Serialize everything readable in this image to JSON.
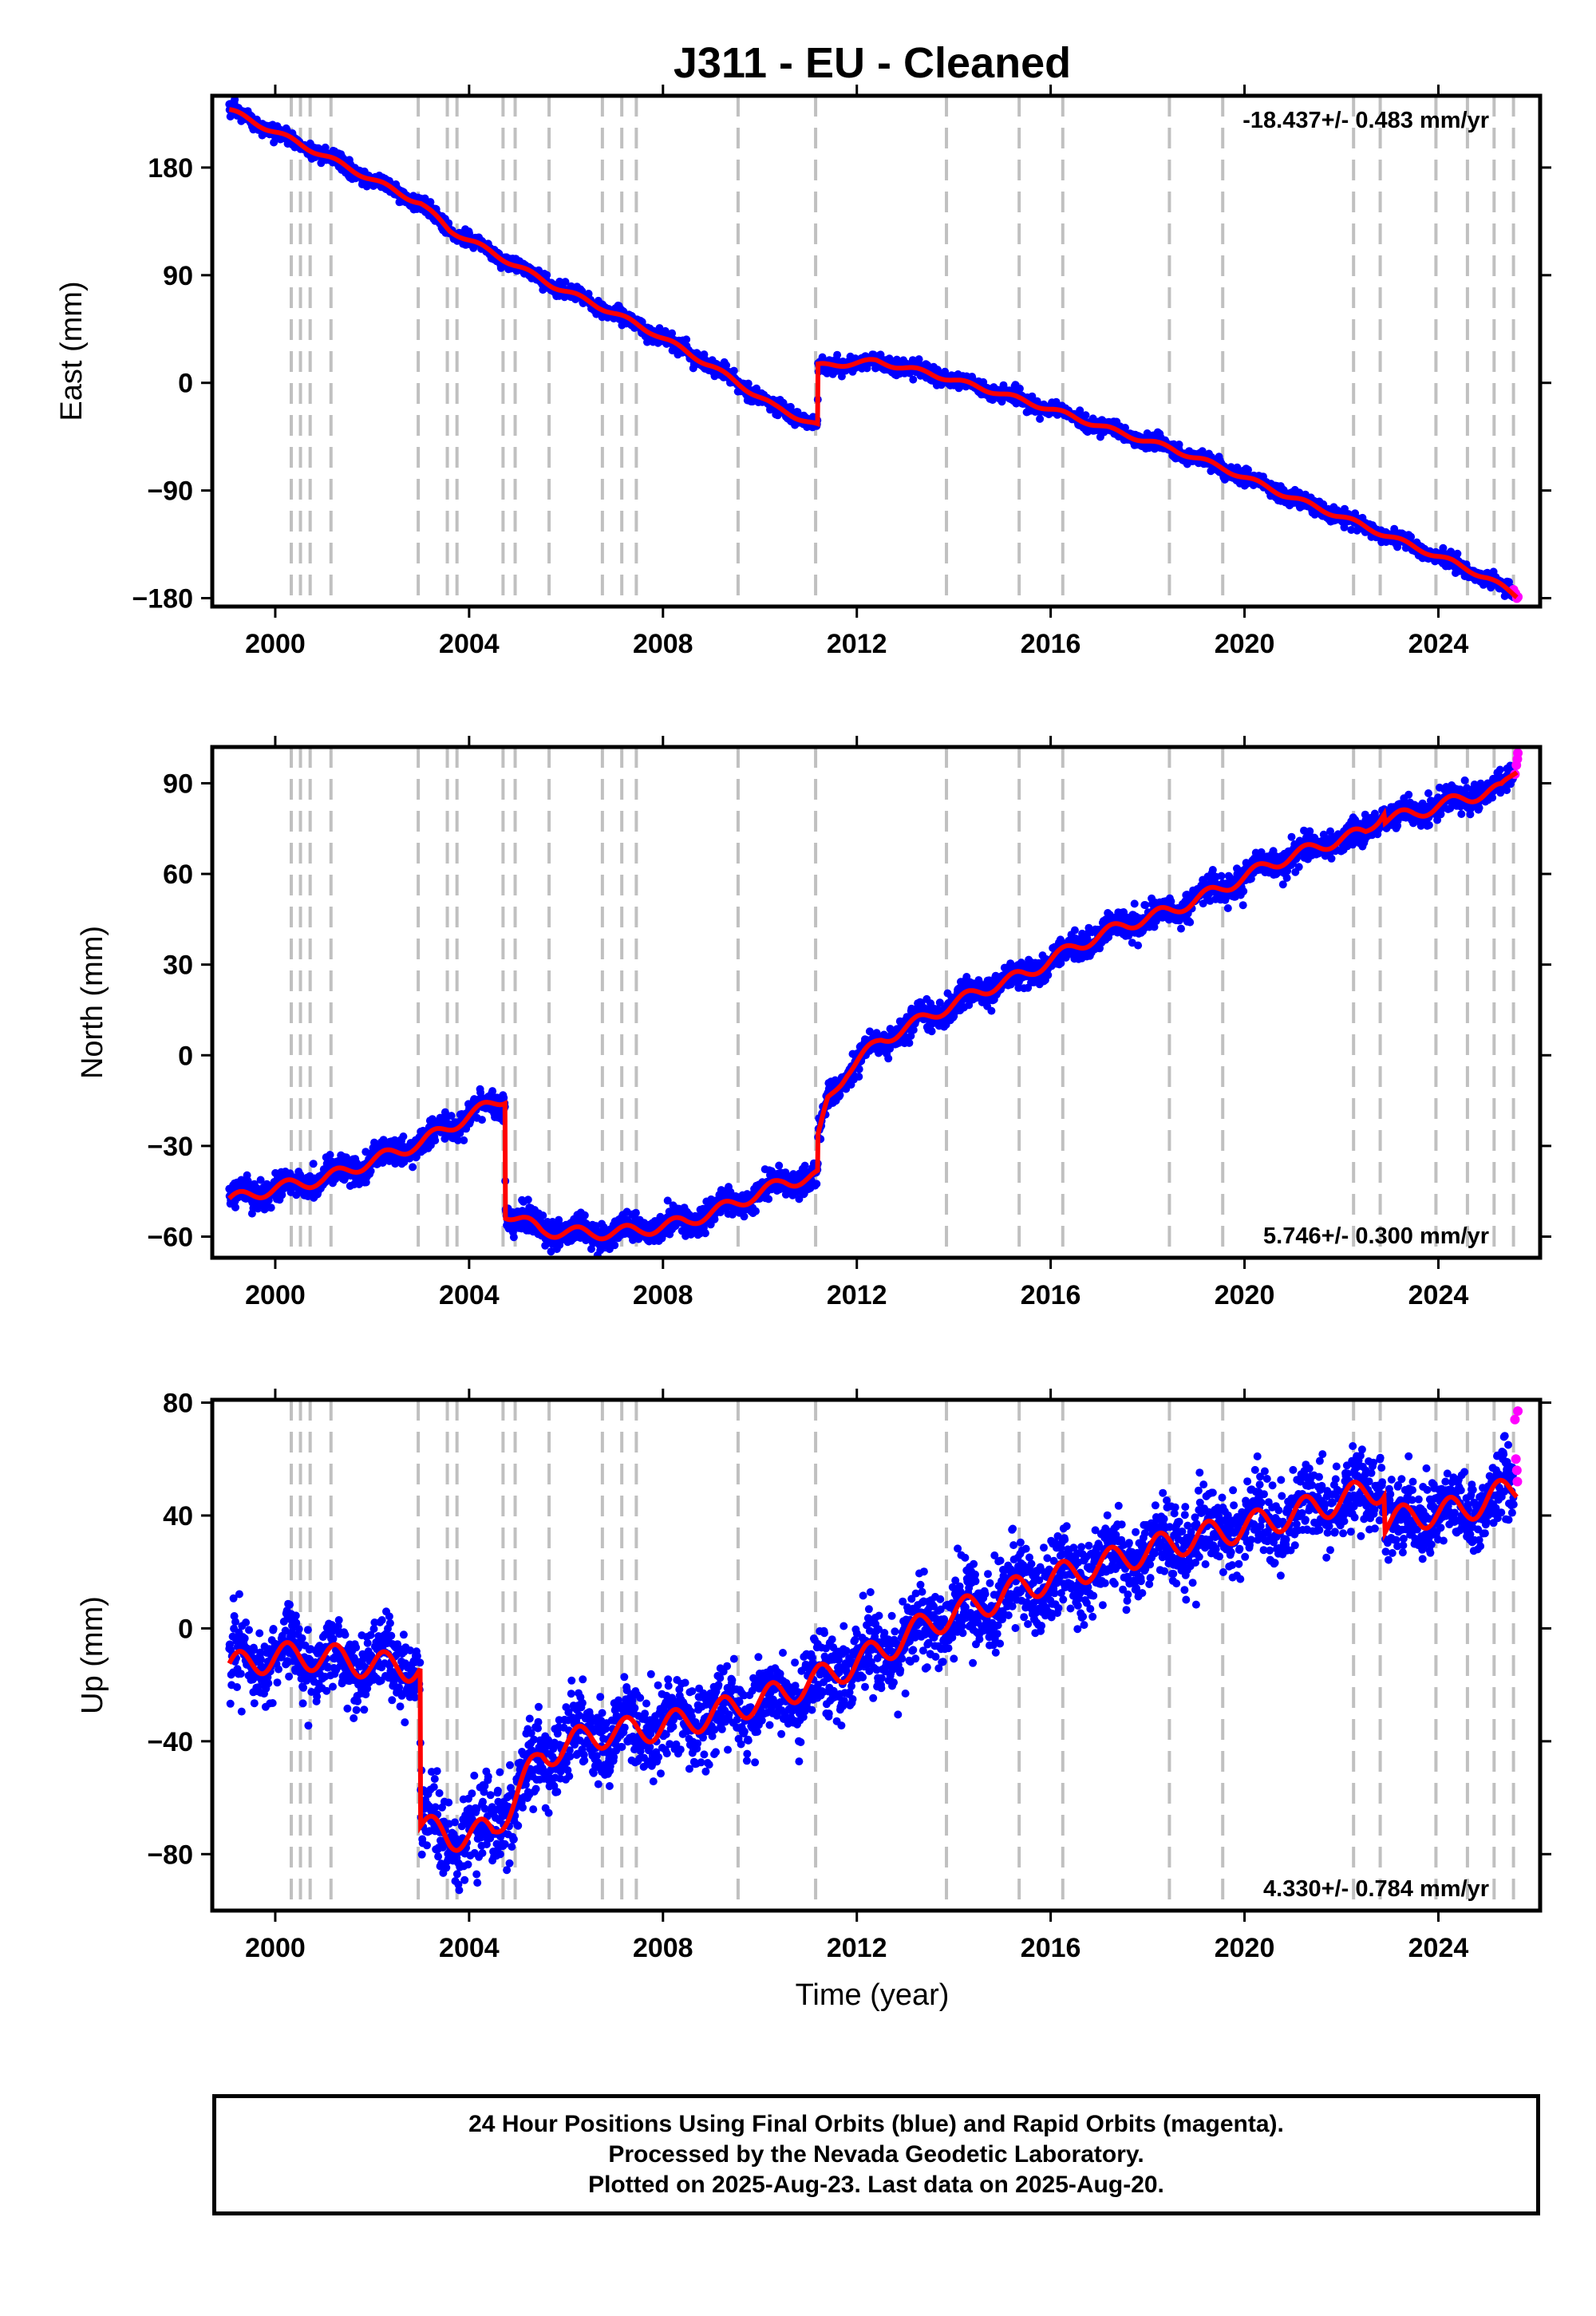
{
  "title": "J311  - EU - Cleaned",
  "xlabel": "Time (year)",
  "colors": {
    "final_orbits": "#0000ff",
    "rapid_orbits": "#ff00ff",
    "model": "#ff0000",
    "event_lines": "#c0c0c0"
  },
  "chart_data": [
    {
      "type": "scatter",
      "component": "east",
      "ylabel": "East (mm)",
      "rate_text": "-18.437+/- 0.483 mm/yr",
      "rate_position": "top-right",
      "xlim": [
        1998.7,
        2026.1
      ],
      "ylim": [
        -187,
        240
      ],
      "xticks": [
        2000,
        2004,
        2008,
        2012,
        2016,
        2020,
        2024
      ],
      "yticks": [
        -180,
        -90,
        0,
        90,
        180
      ],
      "ytick_labels": [
        "−180",
        "−90",
        "0",
        "90",
        "180"
      ],
      "model_knots": [
        [
          1999.05,
          228
        ],
        [
          2000.5,
          200
        ],
        [
          2001.6,
          178
        ],
        [
          2003.0,
          150
        ],
        [
          2003.6,
          128
        ],
        [
          2004.7,
          104
        ],
        [
          2005.7,
          82
        ],
        [
          2006.9,
          60
        ],
        [
          2007.8,
          42
        ],
        [
          2009.0,
          14
        ],
        [
          2010.3,
          -20
        ],
        [
          2011.19,
          -36
        ],
        [
          2011.2,
          14
        ],
        [
          2012.4,
          18
        ],
        [
          2013.5,
          8
        ],
        [
          2014.9,
          -8
        ],
        [
          2016.0,
          -22
        ],
        [
          2017.3,
          -40
        ],
        [
          2018.5,
          -55
        ],
        [
          2019.6,
          -72
        ],
        [
          2020.8,
          -93
        ],
        [
          2022.0,
          -112
        ],
        [
          2023.2,
          -132
        ],
        [
          2024.3,
          -150
        ],
        [
          2025.0,
          -163
        ],
        [
          2025.62,
          -178
        ]
      ],
      "scatter_sigma": 3,
      "seasonal_amplitude": 2,
      "rapid_points": [
        [
          2025.55,
          -173
        ],
        [
          2025.59,
          -176
        ],
        [
          2025.62,
          -180
        ],
        [
          2025.64,
          -179
        ]
      ]
    },
    {
      "type": "scatter",
      "component": "north",
      "ylabel": "North (mm)",
      "rate_text": "5.746+/- 0.300 mm/yr",
      "rate_position": "bottom-right",
      "xlim": [
        1998.7,
        2026.1
      ],
      "ylim": [
        -67,
        102
      ],
      "xticks": [
        2000,
        2004,
        2008,
        2012,
        2016,
        2020,
        2024
      ],
      "yticks": [
        -60,
        -30,
        0,
        30,
        60,
        90
      ],
      "ytick_labels": [
        "−60",
        "−30",
        "0",
        "30",
        "60",
        "90"
      ],
      "model_knots": [
        [
          1999.05,
          -48
        ],
        [
          2000.0,
          -44
        ],
        [
          2001.0,
          -41
        ],
        [
          2002.0,
          -35
        ],
        [
          2003.0,
          -29
        ],
        [
          2004.0,
          -20
        ],
        [
          2004.74,
          -14
        ],
        [
          2004.75,
          -52
        ],
        [
          2005.5,
          -58
        ],
        [
          2006.5,
          -59
        ],
        [
          2007.5,
          -58
        ],
        [
          2008.5,
          -55
        ],
        [
          2009.5,
          -49
        ],
        [
          2010.5,
          -42
        ],
        [
          2011.19,
          -40
        ],
        [
          2011.2,
          -28
        ],
        [
          2011.4,
          -15
        ],
        [
          2011.8,
          -5
        ],
        [
          2012.5,
          5
        ],
        [
          2013.5,
          13
        ],
        [
          2014.5,
          21
        ],
        [
          2015.5,
          27
        ],
        [
          2016.5,
          36
        ],
        [
          2017.5,
          43
        ],
        [
          2018.5,
          48
        ],
        [
          2019.5,
          55
        ],
        [
          2020.5,
          63
        ],
        [
          2021.5,
          69
        ],
        [
          2022.5,
          74
        ],
        [
          2022.88,
          81
        ],
        [
          2022.9,
          78
        ],
        [
          2023.5,
          80
        ],
        [
          2024.5,
          85
        ],
        [
          2025.3,
          88
        ],
        [
          2025.62,
          95
        ]
      ],
      "scatter_sigma": 2.2,
      "seasonal_amplitude": 2,
      "rapid_points": [
        [
          2025.58,
          93
        ],
        [
          2025.61,
          96
        ],
        [
          2025.63,
          98
        ],
        [
          2025.64,
          100
        ]
      ]
    },
    {
      "type": "scatter",
      "component": "up",
      "ylabel": "Up (mm)",
      "rate_text": "4.330+/- 0.784 mm/yr",
      "rate_position": "bottom-right",
      "xlim": [
        1998.7,
        2026.1
      ],
      "ylim": [
        -100,
        81
      ],
      "xticks": [
        2000,
        2004,
        2008,
        2012,
        2016,
        2020,
        2024
      ],
      "yticks": [
        -80,
        -40,
        0,
        40,
        80
      ],
      "ytick_labels": [
        "−80",
        "−40",
        "0",
        "40",
        "80"
      ],
      "model_knots": [
        [
          1999.05,
          -14
        ],
        [
          2000.0,
          -10
        ],
        [
          2001.0,
          -10
        ],
        [
          2002.0,
          -13
        ],
        [
          2002.99,
          -14
        ],
        [
          2003.0,
          -70
        ],
        [
          2003.6,
          -74
        ],
        [
          2004.5,
          -72
        ],
        [
          2005.0,
          -58
        ],
        [
          2005.5,
          -45
        ],
        [
          2006.5,
          -38
        ],
        [
          2007.5,
          -36
        ],
        [
          2008.5,
          -33
        ],
        [
          2009.5,
          -28
        ],
        [
          2010.5,
          -23
        ],
        [
          2011.5,
          -16
        ],
        [
          2012.5,
          -8
        ],
        [
          2013.5,
          2
        ],
        [
          2014.5,
          8
        ],
        [
          2015.5,
          15
        ],
        [
          2016.5,
          20
        ],
        [
          2017.5,
          25
        ],
        [
          2018.5,
          30
        ],
        [
          2019.5,
          34
        ],
        [
          2020.5,
          38
        ],
        [
          2021.5,
          43
        ],
        [
          2022.88,
          50
        ],
        [
          2022.9,
          37
        ],
        [
          2023.5,
          40
        ],
        [
          2024.5,
          42
        ],
        [
          2025.62,
          50
        ]
      ],
      "scatter_sigma": 7,
      "seasonal_amplitude": 5,
      "rapid_points": [
        [
          2025.58,
          74
        ],
        [
          2025.6,
          60
        ],
        [
          2025.62,
          56
        ],
        [
          2025.63,
          52
        ],
        [
          2025.64,
          77
        ]
      ]
    }
  ],
  "event_lines_years": [
    2000.33,
    2000.52,
    2000.72,
    2001.15,
    2002.95,
    2003.55,
    2003.75,
    2004.7,
    2004.95,
    2005.65,
    2006.75,
    2007.15,
    2007.45,
    2009.55,
    2011.15,
    2013.85,
    2015.35,
    2016.25,
    2018.45,
    2019.55,
    2022.25,
    2022.8,
    2023.95,
    2024.6,
    2025.15,
    2025.55
  ],
  "caption": {
    "line1": "24 Hour Positions Using Final Orbits (blue) and Rapid Orbits (magenta).",
    "line2": "Processed by the Nevada Geodetic Laboratory.",
    "line3": "Plotted on 2025-Aug-23. Last data on 2025-Aug-20."
  }
}
